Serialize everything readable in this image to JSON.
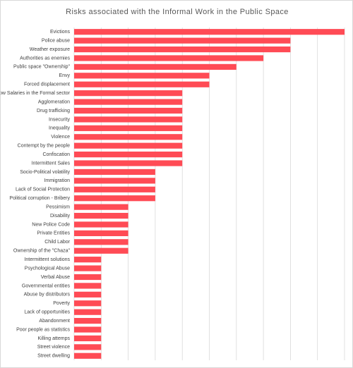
{
  "chart_data": {
    "type": "bar",
    "orientation": "horizontal",
    "title": "Risks associated with the Informal Work in the Public Space",
    "xlabel": "",
    "ylabel": "",
    "xlim": [
      0,
      10
    ],
    "grid": true,
    "legend": "none",
    "bar_color": "#ff4b55",
    "grid_color": "#d9d9d9",
    "categories": [
      "Evictions",
      "Police abuse",
      "Weather exposure",
      "Authorities as enemies",
      "Public space \"Ownership\"",
      "Envy",
      "Forced displacement",
      "Low Salaries in the Formal sector",
      "Agglomeration",
      "Drug trafficking",
      "Insecurity",
      "Inequality",
      "Violence",
      "Contempt by the people",
      "Confiscation",
      "Intermittent Sales",
      "Socio-Political volatility",
      "Immigration",
      "Lack of Social Protection",
      "Political corruption - Bribery",
      "Pessimism",
      "Disability",
      "New Police Code",
      "Private Entities",
      "Child Labor",
      "Ownership of the \"Chaza\"",
      "Intermittent solutions",
      "Psychological Abuse",
      "Verbal Abuse",
      "Governmental entities",
      "Abuse by distributors",
      "Poverty",
      "Lack of opportunities",
      "Abandonment",
      "Poor people as statistics",
      "Killing attemps",
      "Street violence",
      "Street dwelling"
    ],
    "values": [
      10,
      8,
      8,
      7,
      6,
      5,
      5,
      4,
      4,
      4,
      4,
      4,
      4,
      4,
      4,
      4,
      3,
      3,
      3,
      3,
      2,
      2,
      2,
      2,
      2,
      2,
      1,
      1,
      1,
      1,
      1,
      1,
      1,
      1,
      1,
      1,
      1,
      1
    ]
  }
}
